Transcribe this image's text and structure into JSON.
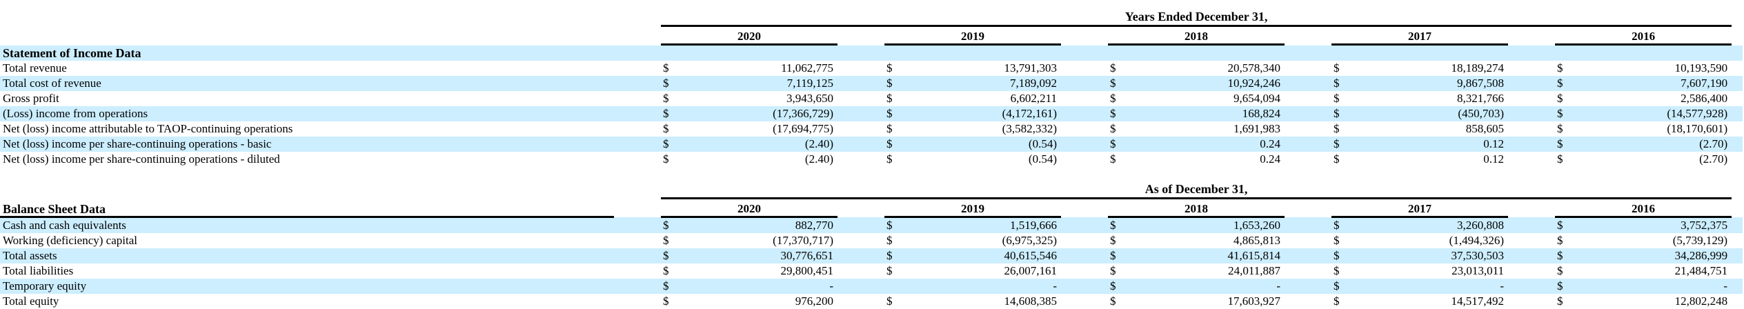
{
  "page": {
    "stripe_color": "#cceeff",
    "rule_color": "#000000"
  },
  "income_table": {
    "period_header": "Years Ended December 31,",
    "years": [
      "2020",
      "2019",
      "2018",
      "2017",
      "2016"
    ],
    "section_label": "Statement of Income Data",
    "rows": [
      {
        "label": "Total revenue",
        "dollars": [
          "$",
          "$",
          "$",
          "$",
          "$"
        ],
        "values": [
          "11,062,775",
          "13,791,303",
          "20,578,340",
          "18,189,274",
          "10,193,590"
        ]
      },
      {
        "label": "Total cost of revenue",
        "dollars": [
          "$",
          "$",
          "$",
          "$",
          "$"
        ],
        "values": [
          "7,119,125",
          "7,189,092",
          "10,924,246",
          "9,867,508",
          "7,607,190"
        ]
      },
      {
        "label": "Gross profit",
        "dollars": [
          "$",
          "$",
          "$",
          "$",
          "$"
        ],
        "values": [
          "3,943,650",
          "6,602,211",
          "9,654,094",
          "8,321,766",
          "2,586,400"
        ]
      },
      {
        "label": "(Loss) income from operations",
        "dollars": [
          "$",
          "$",
          "$",
          "$",
          "$"
        ],
        "values": [
          "(17,366,729)",
          "(4,172,161)",
          "168,824",
          "(450,703)",
          "(14,577,928)"
        ]
      },
      {
        "label": "Net (loss) income attributable to TAOP-continuing operations",
        "dollars": [
          "$",
          "$",
          "$",
          "$",
          "$"
        ],
        "values": [
          "(17,694,775)",
          "(3,582,332)",
          "1,691,983",
          "858,605",
          "(18,170,601)"
        ]
      },
      {
        "label": "Net (loss) income per share-continuing operations - basic",
        "dollars": [
          "$",
          "$",
          "$",
          "$",
          "$"
        ],
        "values": [
          "(2.40)",
          "(0.54)",
          "0.24",
          "0.12",
          "(2.70)"
        ]
      },
      {
        "label": "Net (loss) income per share-continuing operations - diluted",
        "dollars": [
          "$",
          "$",
          "$",
          "$",
          "$"
        ],
        "values": [
          "(2.40)",
          "(0.54)",
          "0.24",
          "0.12",
          "(2.70)"
        ]
      }
    ]
  },
  "balance_table": {
    "period_header": "As of December 31,",
    "years": [
      "2020",
      "2019",
      "2018",
      "2017",
      "2016"
    ],
    "section_label": "Balance Sheet Data",
    "rows": [
      {
        "label": "Cash and cash equivalents",
        "dollars": [
          "$",
          "$",
          "$",
          "$",
          "$"
        ],
        "values": [
          "882,770",
          "1,519,666",
          "1,653,260",
          "3,260,808",
          "3,752,375"
        ]
      },
      {
        "label": "Working (deficiency) capital",
        "dollars": [
          "$",
          "$",
          "$",
          "$",
          "$"
        ],
        "values": [
          "(17,370,717)",
          "(6,975,325)",
          "4,865,813",
          "(1,494,326)",
          "(5,739,129)"
        ]
      },
      {
        "label": "Total assets",
        "dollars": [
          "$",
          "$",
          "$",
          "$",
          "$"
        ],
        "values": [
          "30,776,651",
          "40,615,546",
          "41,615,814",
          "37,530,503",
          "34,286,999"
        ]
      },
      {
        "label": "Total liabilities",
        "dollars": [
          "$",
          "$",
          "$",
          "$",
          "$"
        ],
        "values": [
          "29,800,451",
          "26,007,161",
          "24,011,887",
          "23,013,011",
          "21,484,751"
        ]
      },
      {
        "label": "Temporary equity",
        "dollars": [
          "$",
          "",
          "$",
          "$",
          "$"
        ],
        "values": [
          "-",
          "-",
          "-",
          "-",
          "-"
        ]
      },
      {
        "label": "Total equity",
        "dollars": [
          "$",
          "$",
          "$",
          "$",
          "$"
        ],
        "values": [
          "976,200",
          "14,608,385",
          "17,603,927",
          "14,517,492",
          "12,802,248"
        ]
      }
    ]
  }
}
